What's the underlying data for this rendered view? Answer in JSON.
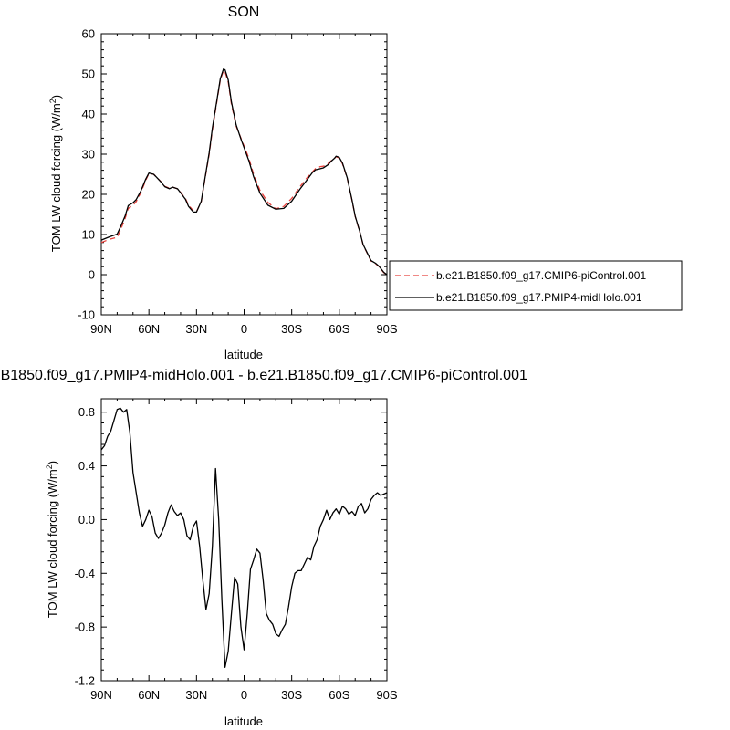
{
  "chart_data": [
    {
      "type": "line",
      "title": "SON",
      "xlabel": "latitude",
      "ylabel_main": "TOM LW cloud forcing (W/m",
      "ylabel_sup": "2",
      "ylabel_close": ")",
      "xlim": [
        90,
        -90
      ],
      "ylim": [
        -10,
        60
      ],
      "xticks": [
        90,
        60,
        30,
        0,
        -30,
        -60,
        -90
      ],
      "xtick_labels": [
        "90N",
        "60N",
        "30N",
        "0",
        "30S",
        "60S",
        "90S"
      ],
      "yticks": [
        -10,
        0,
        10,
        20,
        30,
        40,
        50,
        60
      ],
      "ytick_labels": [
        "-10",
        "0",
        "10",
        "20",
        "30",
        "40",
        "50",
        "60"
      ],
      "series": [
        {
          "name": "b.e21.B1850.f09_g17.CMIP6-piControl.001",
          "color": "#e8413c",
          "dash": "dashed",
          "x": [
            90,
            85,
            80,
            78,
            75,
            73,
            70,
            68,
            65,
            62,
            60,
            57,
            55,
            52,
            50,
            47,
            45,
            42,
            40,
            37,
            35,
            32,
            30,
            27,
            25,
            22,
            20,
            17,
            15,
            13,
            12,
            10,
            8,
            5,
            2,
            0,
            -3,
            -6,
            -10,
            -15,
            -20,
            -25,
            -30,
            -35,
            -40,
            -43,
            -45,
            -48,
            -50,
            -53,
            -55,
            -57,
            -58,
            -60,
            -62,
            -65,
            -68,
            -70,
            -73,
            -75,
            -78,
            -80,
            -83,
            -85,
            -88,
            -90
          ],
          "y": [
            8.0,
            8.8,
            9.3,
            11.0,
            14.0,
            16.5,
            17.3,
            18.2,
            20.5,
            23.5,
            25.2,
            25.0,
            24.2,
            23.0,
            22.0,
            21.5,
            21.8,
            21.4,
            20.5,
            19.0,
            17.3,
            15.9,
            15.7,
            18.2,
            23.0,
            30.0,
            36.0,
            43.5,
            48.5,
            50.8,
            50.5,
            48.0,
            42.5,
            37.0,
            34.0,
            32.0,
            29.0,
            25.0,
            21.0,
            18.0,
            16.4,
            17.0,
            19.0,
            21.8,
            24.3,
            25.6,
            26.4,
            26.9,
            27.0,
            27.7,
            28.4,
            29.0,
            29.4,
            29.0,
            27.6,
            24.0,
            18.5,
            14.5,
            10.5,
            7.4,
            5.0,
            3.4,
            2.7,
            2.0,
            0.5,
            0.0
          ]
        },
        {
          "name": "b.e21.B1850.f09_g17.PMIP4-midHolo.001",
          "color": "#000000",
          "dash": "solid",
          "x": [
            90,
            85,
            80,
            78,
            75,
            73,
            70,
            68,
            65,
            62,
            60,
            57,
            55,
            52,
            50,
            47,
            45,
            42,
            40,
            37,
            35,
            32,
            30,
            27,
            25,
            22,
            20,
            17,
            15,
            13,
            12,
            10,
            8,
            5,
            2,
            0,
            -3,
            -6,
            -10,
            -15,
            -20,
            -25,
            -30,
            -35,
            -40,
            -43,
            -45,
            -48,
            -50,
            -53,
            -55,
            -57,
            -58,
            -60,
            -62,
            -65,
            -68,
            -70,
            -73,
            -75,
            -78,
            -80,
            -83,
            -85,
            -88,
            -90
          ],
          "y": [
            8.6,
            9.4,
            10.1,
            11.8,
            14.6,
            17.2,
            17.9,
            18.7,
            20.9,
            23.8,
            25.3,
            25.0,
            24.2,
            22.9,
            21.9,
            21.4,
            21.8,
            21.4,
            20.4,
            18.8,
            17.0,
            15.6,
            15.6,
            18.3,
            23.2,
            30.4,
            36.5,
            43.8,
            48.8,
            51.2,
            51.0,
            48.5,
            43.0,
            37.3,
            33.8,
            31.6,
            28.4,
            24.4,
            20.3,
            17.3,
            16.3,
            16.5,
            18.3,
            21.2,
            23.8,
            25.4,
            26.1,
            26.4,
            26.6,
            27.4,
            28.3,
            29.0,
            29.5,
            29.2,
            27.8,
            24.1,
            18.6,
            14.6,
            10.6,
            7.5,
            5.1,
            3.5,
            2.8,
            2.1,
            0.6,
            0.0
          ]
        }
      ],
      "legend_position": "right"
    },
    {
      "type": "line",
      "title": "b.e21.B1850.f09_g17.PMIP4-midHolo.001 - b.e21.B1850.f09_g17.CMIP6-piControl.001",
      "xlabel": "latitude",
      "ylabel_main": "TOM LW cloud forcing (W/m",
      "ylabel_sup": "2",
      "ylabel_close": ")",
      "xlim": [
        90,
        -90
      ],
      "ylim": [
        -1.2,
        0.9
      ],
      "xticks": [
        90,
        60,
        30,
        0,
        -30,
        -60,
        -90
      ],
      "xtick_labels": [
        "90N",
        "60N",
        "30N",
        "0",
        "30S",
        "60S",
        "90S"
      ],
      "yticks": [
        -1.2,
        -0.8,
        -0.4,
        0.0,
        0.4,
        0.8
      ],
      "ytick_labels": [
        "-1.2",
        "-0.8",
        "-0.4",
        "0.0",
        "0.4",
        "0.8"
      ],
      "series": [
        {
          "color": "#000000",
          "x": [
            90,
            88,
            86,
            84,
            82,
            80,
            78,
            76,
            74,
            72,
            70,
            68,
            66,
            64,
            62,
            60,
            58,
            56,
            54,
            52,
            50,
            48,
            46,
            44,
            42,
            40,
            38,
            36,
            34,
            32,
            30,
            28,
            26,
            24,
            22,
            20,
            18,
            16,
            14,
            12,
            10,
            8,
            6,
            4,
            2,
            0,
            -2,
            -4,
            -6,
            -8,
            -10,
            -12,
            -14,
            -16,
            -18,
            -20,
            -22,
            -24,
            -26,
            -28,
            -30,
            -32,
            -34,
            -36,
            -38,
            -40,
            -42,
            -44,
            -46,
            -48,
            -50,
            -52,
            -54,
            -56,
            -58,
            -60,
            -62,
            -64,
            -66,
            -68,
            -70,
            -72,
            -74,
            -76,
            -78,
            -80,
            -82,
            -84,
            -86,
            -88,
            -90
          ],
          "y": [
            0.52,
            0.55,
            0.62,
            0.66,
            0.74,
            0.82,
            0.83,
            0.8,
            0.82,
            0.65,
            0.35,
            0.2,
            0.05,
            -0.05,
            0.0,
            0.07,
            0.02,
            -0.1,
            -0.14,
            -0.1,
            -0.04,
            0.05,
            0.11,
            0.06,
            0.03,
            0.05,
            0.0,
            -0.12,
            -0.15,
            -0.05,
            -0.01,
            -0.2,
            -0.45,
            -0.67,
            -0.55,
            -0.2,
            0.38,
            0.0,
            -0.6,
            -1.1,
            -0.98,
            -0.7,
            -0.43,
            -0.48,
            -0.8,
            -0.97,
            -0.7,
            -0.37,
            -0.3,
            -0.22,
            -0.25,
            -0.45,
            -0.7,
            -0.75,
            -0.78,
            -0.85,
            -0.87,
            -0.82,
            -0.78,
            -0.65,
            -0.5,
            -0.4,
            -0.38,
            -0.38,
            -0.33,
            -0.28,
            -0.3,
            -0.2,
            -0.15,
            -0.05,
            0.0,
            0.07,
            0.0,
            0.05,
            0.08,
            0.04,
            0.1,
            0.08,
            0.04,
            0.06,
            0.03,
            0.1,
            0.12,
            0.05,
            0.08,
            0.15,
            0.18,
            0.2,
            0.18,
            0.19,
            0.2
          ]
        }
      ]
    }
  ]
}
